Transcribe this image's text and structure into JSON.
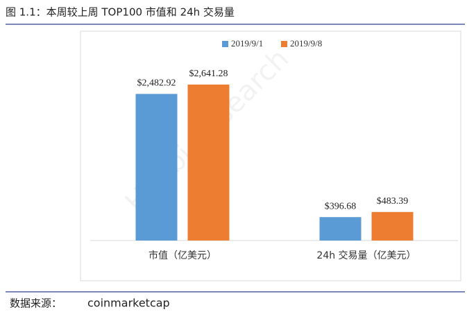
{
  "chart_data": {
    "type": "bar",
    "title": "图 1.1：本周较上周 TOP100 市值和 24h 交易量",
    "categories": [
      "市值（亿美元）",
      "24h 交易量（亿美元）"
    ],
    "series": [
      {
        "name": "2019/9/1",
        "color": "#5b9bd5",
        "values": [
          2482.92,
          396.68
        ],
        "value_labels": [
          "$2,482.92",
          "$396.68"
        ]
      },
      {
        "name": "2019/9/8",
        "color": "#ed7d31",
        "values": [
          2641.28,
          483.39
        ],
        "value_labels": [
          "$2,641.28",
          "$483.39"
        ]
      }
    ],
    "legend": "top",
    "source_label": "数据来源：",
    "source": "coinmarketcap",
    "watermark": "Huobi Research"
  }
}
